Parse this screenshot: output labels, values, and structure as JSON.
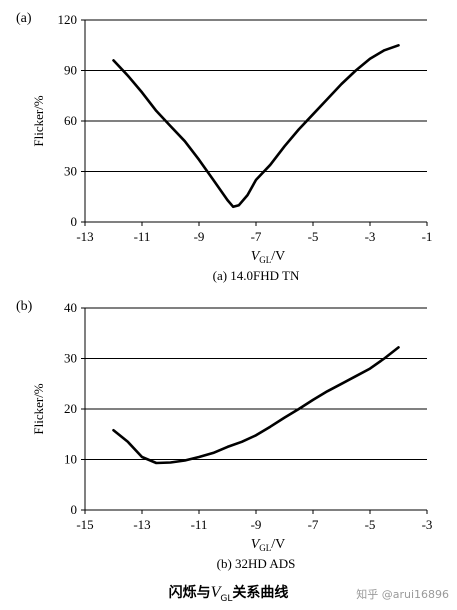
{
  "chart_data": [
    {
      "type": "line",
      "panel_label": "(a)",
      "subtitle": "(a) 14.0FHD TN",
      "ylabel": "Flicker/%",
      "xlabel_main": "V",
      "xlabel_sub": "GL",
      "xlabel_unit": "/V",
      "xlim": [
        -13,
        -1
      ],
      "ylim": [
        0,
        120
      ],
      "xticks": [
        -13,
        -11,
        -9,
        -7,
        -5,
        -3,
        -1
      ],
      "yticks": [
        0,
        30,
        60,
        90,
        120
      ],
      "grid": "horizontal",
      "series": [
        {
          "x": [
            -12.0,
            -11.5,
            -11.0,
            -10.5,
            -10.0,
            -9.5,
            -9.0,
            -8.5,
            -8.0,
            -7.8,
            -7.6,
            -7.3,
            -7.0,
            -6.5,
            -6.0,
            -5.5,
            -5.0,
            -4.5,
            -4.0,
            -3.5,
            -3.0,
            -2.5,
            -2.0
          ],
          "y": [
            96,
            87,
            77,
            66,
            57,
            48,
            37,
            25,
            13,
            9,
            10,
            16,
            25,
            34,
            45,
            55,
            64,
            73,
            82,
            90,
            97,
            102,
            105
          ]
        }
      ]
    },
    {
      "type": "line",
      "panel_label": "(b)",
      "subtitle": "(b) 32HD ADS",
      "ylabel": "Flicker/%",
      "xlabel_main": "V",
      "xlabel_sub": "GL",
      "xlabel_unit": "/V",
      "xlim": [
        -15,
        -3
      ],
      "ylim": [
        0,
        40
      ],
      "xticks": [
        -15,
        -13,
        -11,
        -9,
        -7,
        -5,
        -3
      ],
      "yticks": [
        0,
        10,
        20,
        30,
        40
      ],
      "grid": "horizontal",
      "series": [
        {
          "x": [
            -14.0,
            -13.5,
            -13.0,
            -12.5,
            -12.0,
            -11.5,
            -11.0,
            -10.5,
            -10.0,
            -9.5,
            -9.0,
            -8.5,
            -8.0,
            -7.5,
            -7.0,
            -6.5,
            -6.0,
            -5.5,
            -5.0,
            -4.5,
            -4.0
          ],
          "y": [
            15.8,
            13.5,
            10.5,
            9.3,
            9.4,
            9.8,
            10.5,
            11.3,
            12.5,
            13.5,
            14.8,
            16.5,
            18.3,
            20.0,
            21.8,
            23.5,
            25.0,
            26.5,
            28.0,
            30.0,
            32.2
          ]
        }
      ]
    }
  ],
  "caption": {
    "prefix": "闪烁与",
    "var_main": "V",
    "var_sub": "GL",
    "suffix": "关系曲线"
  },
  "watermark": "知乎 @arui16896"
}
